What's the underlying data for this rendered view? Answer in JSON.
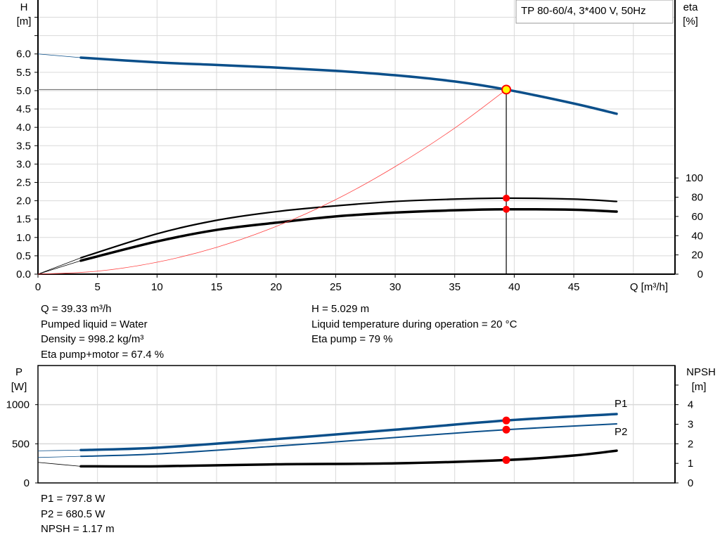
{
  "colors": {
    "head": "#0b4f8a",
    "eta": "#000000",
    "system": "#ff4040",
    "power": "#0b4f8a",
    "npsh": "#000000",
    "marker": "#ff0000",
    "op_point_fill": "#ffff00",
    "grid": "#d9d9d9"
  },
  "legend_text": "TP 80-60/4, 3*400 V, 50Hz",
  "info_top_left": [
    "Q = 39.33 m³/h",
    "Pumped liquid = Water",
    "Density = 998.2 kg/m³",
    "Eta pump+motor = 67.4 %"
  ],
  "info_top_right": [
    "H = 5.029 m",
    "Liquid temperature during operation = 20 °C",
    "Eta pump = 79 %"
  ],
  "info_bottom": [
    "P1 = 797.8 W",
    "P2 = 680.5 W",
    "NPSH = 1.17 m"
  ],
  "chart_data": [
    {
      "type": "line",
      "xlabel": "Q [m³/h]",
      "ylabel": "H [m]",
      "ylabel_lines": [
        "H",
        "[m]"
      ],
      "y2label_lines": [
        "eta",
        "[%]"
      ],
      "xlim": [
        0,
        53.5
      ],
      "ylim": [
        0,
        7.47
      ],
      "y2lim": [
        0,
        285
      ],
      "xticks": [
        0,
        5,
        10,
        15,
        20,
        25,
        30,
        35,
        40,
        45
      ],
      "yticks": [
        "0.0",
        "0.5",
        "1.0",
        "1.5",
        "2.0",
        "2.5",
        "3.0",
        "3.5",
        "4.0",
        "4.5",
        "5.0",
        "5.5",
        "6.0"
      ],
      "y2ticks": [
        0,
        20,
        40,
        60,
        80,
        100
      ],
      "grid": true,
      "legend": "top-right",
      "operating_point": {
        "Q": 39.33,
        "H": 5.029,
        "eta_pump": 79,
        "eta_pump_motor": 67.4
      },
      "series": [
        {
          "key": "H",
          "axis": "left",
          "x": [
            0,
            3.6,
            10,
            15,
            20,
            25,
            30,
            35,
            39.33,
            45,
            48.6
          ],
          "y": [
            6.0,
            5.9,
            5.77,
            5.7,
            5.63,
            5.54,
            5.42,
            5.25,
            5.029,
            4.65,
            4.37
          ]
        },
        {
          "key": "eta_pump",
          "axis": "right",
          "x": [
            0,
            3.6,
            10,
            15,
            20,
            25,
            30,
            35,
            39.33,
            45,
            48.6
          ],
          "y": [
            0,
            17,
            42,
            56,
            65,
            71,
            75.6,
            78,
            79,
            78,
            75.6
          ]
        },
        {
          "key": "eta_pump_motor",
          "axis": "right",
          "x": [
            0,
            3.6,
            10,
            15,
            20,
            25,
            30,
            35,
            39.33,
            45,
            48.6
          ],
          "y": [
            0,
            14,
            34,
            46,
            53.5,
            60,
            64,
            66.4,
            67.4,
            67,
            65
          ]
        },
        {
          "key": "system",
          "axis": "left",
          "x": [
            0,
            5,
            10,
            15,
            20,
            25,
            30,
            35,
            39.33
          ],
          "y": [
            0,
            0.081,
            0.325,
            0.731,
            1.3,
            2.03,
            2.93,
            3.98,
            5.029
          ]
        }
      ]
    },
    {
      "type": "line",
      "ylabel_lines": [
        "P",
        "[W]"
      ],
      "y2label_lines": [
        "NPSH",
        "[m]"
      ],
      "xlim": [
        0,
        53.5
      ],
      "ylim": [
        0,
        1500
      ],
      "y2lim": [
        0,
        6
      ],
      "yticks": [
        0,
        500,
        1000
      ],
      "y2ticks": [
        0,
        1,
        2,
        3,
        4
      ],
      "grid": true,
      "series": [
        {
          "key": "P1",
          "name": "P1",
          "axis": "left",
          "x": [
            0,
            3.6,
            10,
            20,
            30,
            39.33,
            48.6
          ],
          "y": [
            410,
            420,
            450,
            560,
            680,
            797.8,
            880
          ]
        },
        {
          "key": "P2",
          "name": "P2",
          "axis": "left",
          "x": [
            0,
            3.6,
            10,
            20,
            30,
            39.33,
            48.6
          ],
          "y": [
            325,
            340,
            370,
            470,
            580,
            680.5,
            755
          ]
        },
        {
          "key": "NPSH",
          "axis": "right",
          "x": [
            0,
            3.6,
            10,
            20,
            30,
            39.33,
            45,
            48.6
          ],
          "y": [
            1.05,
            0.85,
            0.85,
            0.95,
            1.0,
            1.17,
            1.4,
            1.65
          ]
        }
      ]
    }
  ]
}
